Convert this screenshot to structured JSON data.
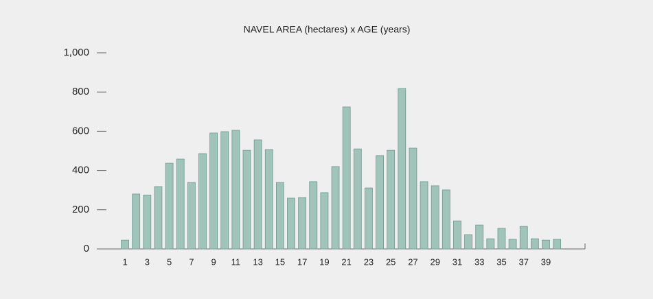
{
  "chart_data": {
    "type": "bar",
    "title": "NAVEL AREA (hectares) x AGE (years)",
    "categories": [
      "1",
      null,
      "3",
      null,
      "5",
      null,
      "7",
      null,
      "9",
      null,
      "11",
      null,
      "13",
      null,
      "15",
      null,
      "17",
      null,
      "19",
      null,
      "21",
      null,
      "23",
      null,
      "25",
      null,
      "27",
      null,
      "29",
      null,
      "31",
      null,
      "33",
      null,
      "35",
      null,
      "37",
      null,
      "39",
      null
    ],
    "values": [
      45,
      280,
      275,
      318,
      437,
      458,
      339,
      486,
      591,
      598,
      605,
      503,
      556,
      507,
      339,
      259,
      262,
      343,
      287,
      420,
      724,
      510,
      311,
      476,
      503,
      818,
      514,
      343,
      322,
      301,
      143,
      73,
      122,
      52,
      105,
      49,
      115,
      52,
      45,
      49
    ],
    "color": "#a0c4ba",
    "ylim": [
      0,
      1000
    ],
    "yticks": [
      0,
      200,
      400,
      600,
      800,
      {
        "value": 1000,
        "label": "1,000"
      }
    ],
    "grid": false
  }
}
